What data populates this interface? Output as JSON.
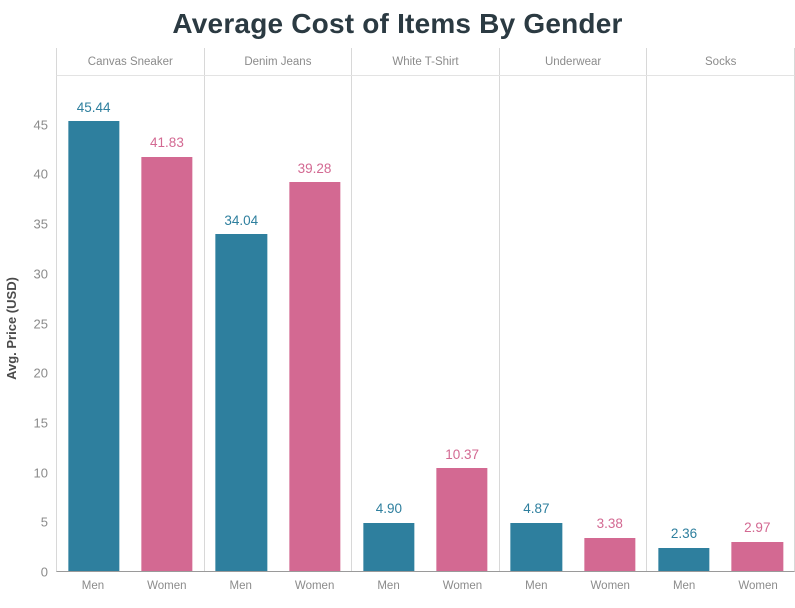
{
  "chart_data": {
    "type": "bar",
    "title": "Average Cost of Items By Gender",
    "ylabel": "Avg. Price (USD)",
    "ylim": [
      0,
      50
    ],
    "yticks": [
      0,
      5,
      10,
      15,
      20,
      25,
      30,
      35,
      40,
      45
    ],
    "categories": [
      "Canvas Sneaker",
      "Denim Jeans",
      "White T-Shirt",
      "Underwear",
      "Socks"
    ],
    "series": [
      {
        "name": "Men",
        "color": "#2E7F9E",
        "values": [
          45.44,
          34.04,
          4.9,
          4.87,
          2.36
        ]
      },
      {
        "name": "Women",
        "color": "#D36992",
        "values": [
          41.83,
          39.28,
          10.37,
          3.38,
          2.97
        ]
      }
    ],
    "legend_position": "none",
    "grid": "off",
    "value_labels_decimals": 2
  }
}
